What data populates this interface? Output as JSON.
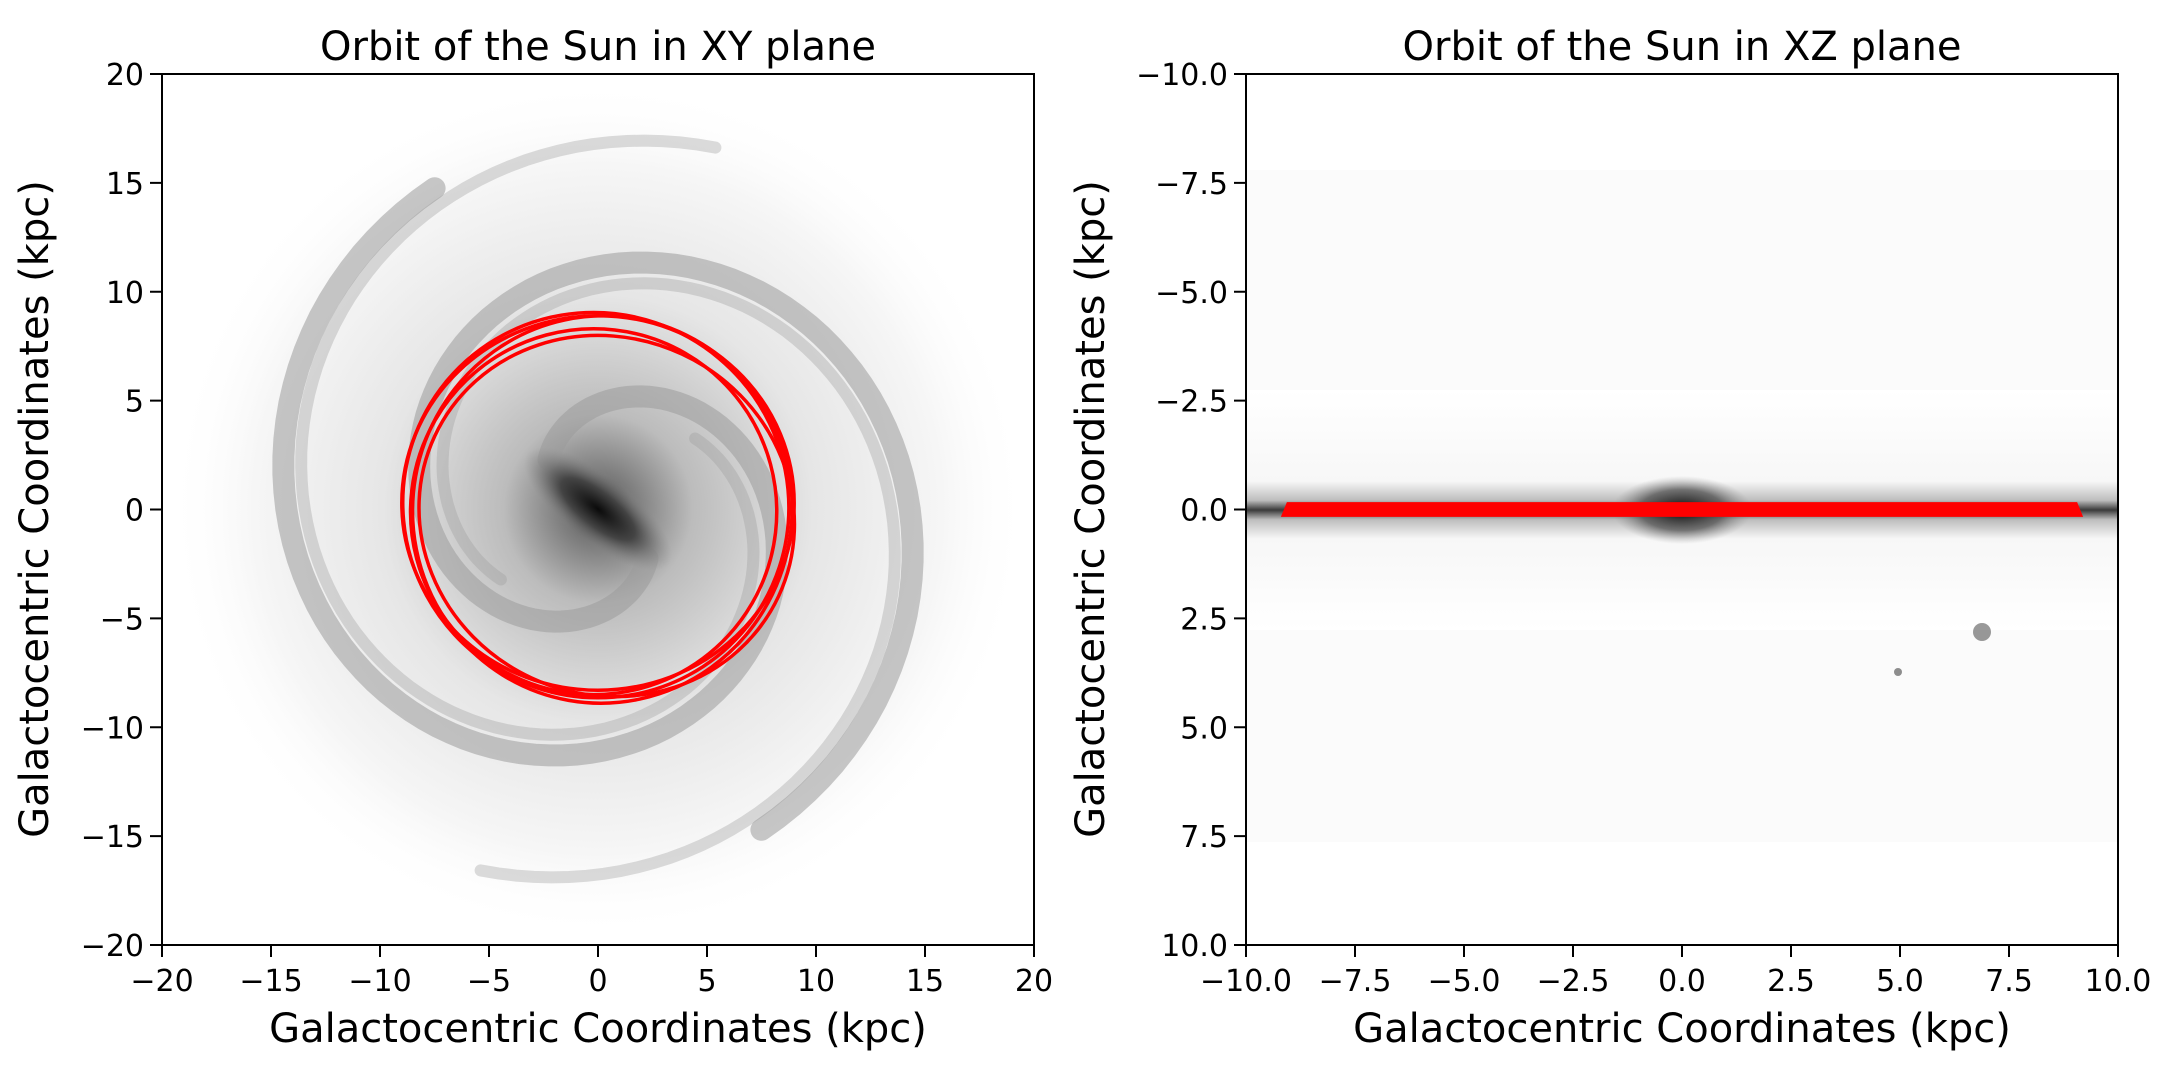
{
  "chart_data": [
    {
      "type": "line",
      "title": "Orbit of the Sun in XY plane",
      "xlabel": "Galactocentric Coordinates (kpc)",
      "ylabel": "Galactocentric Coordinates (kpc)",
      "xlim": [
        -20,
        20
      ],
      "ylim": [
        -20,
        20
      ],
      "y_inverted": false,
      "x_ticks": [
        "−20",
        "−15",
        "−10",
        "−5",
        "0",
        "5",
        "10",
        "15",
        "20"
      ],
      "y_ticks": [
        "20",
        "15",
        "10",
        "5",
        "0",
        "−5",
        "−10",
        "−15",
        "−20"
      ],
      "background": "grayscale spiral galaxy image (face-on Milky Way)",
      "grid": false,
      "series": [
        {
          "color": "#ff0000",
          "description": "multiple elliptical orbit loops around the galactic center",
          "loops": [
            {
              "cx": 0.0,
              "cy": 0.3,
              "rx": 9.0,
              "ry": 8.6,
              "rotation_deg": 0
            },
            {
              "cx": 0.2,
              "cy": 0.0,
              "rx": 8.7,
              "ry": 8.9,
              "rotation_deg": 10
            },
            {
              "cx": -0.2,
              "cy": -0.1,
              "rx": 8.4,
              "ry": 8.4,
              "rotation_deg": -15
            },
            {
              "cx": 0.4,
              "cy": -0.3,
              "rx": 8.7,
              "ry": 8.2,
              "rotation_deg": 25
            },
            {
              "cx": -0.1,
              "cy": 0.2,
              "rx": 8.9,
              "ry": 8.8,
              "rotation_deg": 40
            }
          ]
        }
      ]
    },
    {
      "type": "line",
      "title": "Orbit of the Sun in XZ plane",
      "xlabel": "Galactocentric Coordinates (kpc)",
      "ylabel": "Galactocentric Coordinates (kpc)",
      "xlim": [
        -10,
        10
      ],
      "ylim": [
        -10,
        10
      ],
      "y_inverted": true,
      "x_ticks": [
        "−10.0",
        "−7.5",
        "−5.0",
        "−2.5",
        "0.0",
        "2.5",
        "5.0",
        "7.5",
        "10.0"
      ],
      "y_ticks": [
        "−10.0",
        "−7.5",
        "−5.0",
        "−2.5",
        "0.0",
        "2.5",
        "5.0",
        "7.5",
        "10.0"
      ],
      "background": "grayscale edge-on galaxy image (Milky Way disk)",
      "grid": false,
      "series": [
        {
          "color": "#ff0000",
          "description": "thin band of the orbit projected in XZ plane",
          "x_range": [
            -9.2,
            9.2
          ],
          "z_range": [
            -0.1,
            0.1
          ]
        }
      ]
    }
  ]
}
